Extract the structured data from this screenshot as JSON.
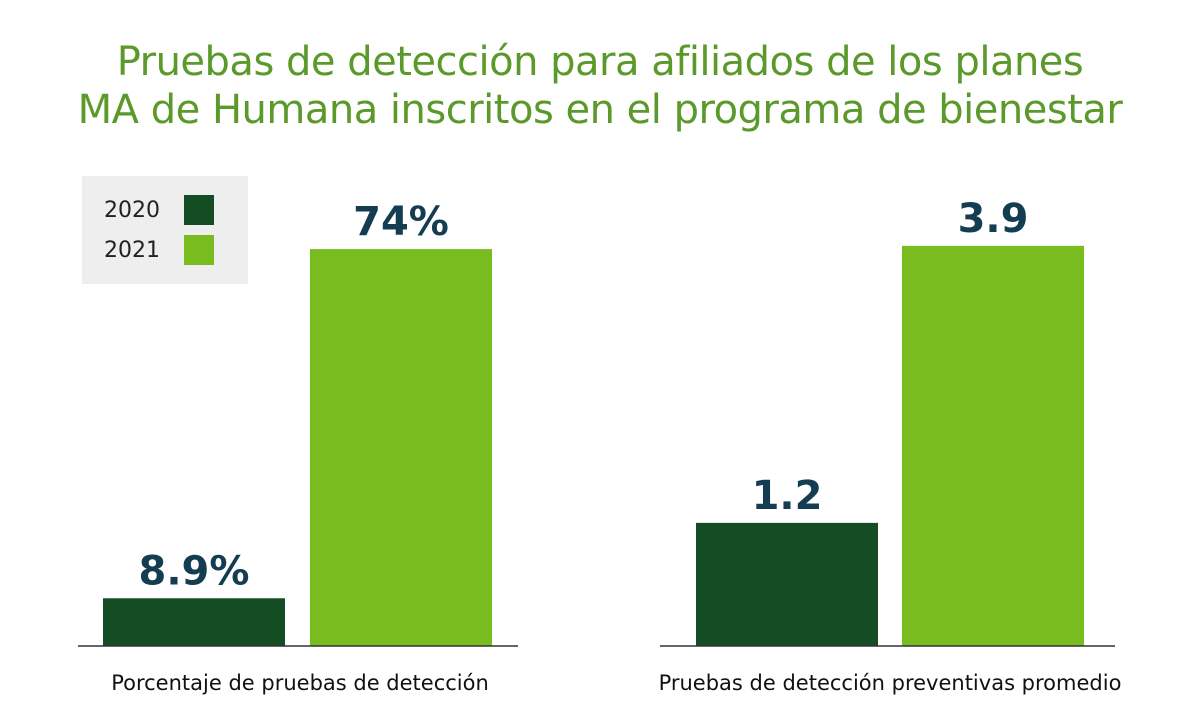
{
  "title": {
    "line1": "Pruebas de detección para afiliados de los planes",
    "line2": "MA de Humana inscritos en el programa de bienestar"
  },
  "legend": [
    {
      "label": "2020",
      "color": "#144c24"
    },
    {
      "label": "2021",
      "color": "#78bc20"
    }
  ],
  "colors": {
    "title": "#5b9a2a",
    "value_label": "#143d52",
    "axis": "#333333"
  },
  "chart_data": [
    {
      "type": "bar",
      "xlabel": "Porcentaje de pruebas de detección",
      "categories": [
        "2020",
        "2021"
      ],
      "values": [
        8.9,
        74
      ],
      "value_labels": [
        "8.9%",
        "74%"
      ],
      "unit": "%",
      "ylim": [
        0,
        88
      ],
      "grid": false,
      "legend_position": "top-left"
    },
    {
      "type": "bar",
      "xlabel": "Pruebas de detección preventivas promedio",
      "categories": [
        "2020",
        "2021"
      ],
      "values": [
        1.2,
        3.9
      ],
      "value_labels": [
        "1.2",
        "3.9"
      ],
      "ylim": [
        0,
        4.6
      ],
      "grid": false
    }
  ]
}
